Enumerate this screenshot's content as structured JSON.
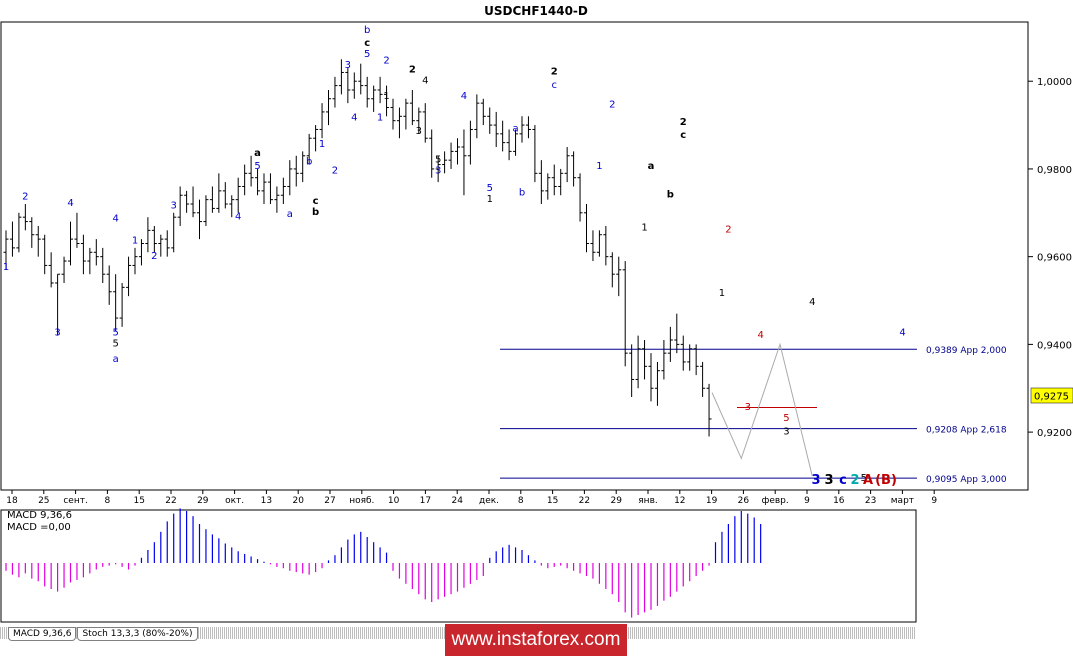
{
  "title": "USDCHF1440-D",
  "current_price": "0,9275",
  "y_tick_labels": [
    "1,0000",
    "0,9800",
    "0,9600",
    "0,9400",
    "0,9200"
  ],
  "x_tick_labels": [
    "18",
    "25",
    "сент.",
    "8",
    "15",
    "22",
    "29",
    "окт.",
    "13",
    "20",
    "27",
    "нояб.",
    "10",
    "17",
    "24",
    "дек.",
    "8",
    "15",
    "22",
    "29",
    "янв.",
    "12",
    "19",
    "26",
    "февр.",
    "9",
    "16",
    "23",
    "март",
    "9"
  ],
  "macd": {
    "label_line1": "MACD 9,36,6",
    "label_line2": "MACD =0,00"
  },
  "tabs": [
    "MACD 9,36,6",
    "Stoch 13,3,3 (80%-20%)"
  ],
  "watermark": "www.instaforex.com",
  "colors": {
    "blue": "#0000cc",
    "black": "#000000",
    "red": "#c00000",
    "macd_pos": "#0000ee",
    "macd_neg": "#e000e0",
    "current_bg": "#ffff00",
    "target_line": "#00008b"
  },
  "chart_data": {
    "type": "candlestick",
    "symbol": "USDCHF",
    "timeframe": "D1",
    "title": "USDCHF1440-D",
    "ylim": [
      0.9068,
      1.0135
    ],
    "y_ticks": [
      1.0,
      0.98,
      0.96,
      0.94,
      0.92
    ],
    "current": 0.9275,
    "bars": [
      [
        0.961,
        0.966,
        0.957,
        0.964
      ],
      [
        0.964,
        0.968,
        0.96,
        0.962
      ],
      [
        0.962,
        0.97,
        0.961,
        0.969
      ],
      [
        0.969,
        0.972,
        0.966,
        0.968
      ],
      [
        0.968,
        0.969,
        0.962,
        0.965
      ],
      [
        0.965,
        0.967,
        0.96,
        0.964
      ],
      [
        0.964,
        0.965,
        0.956,
        0.958
      ],
      [
        0.958,
        0.961,
        0.953,
        0.954
      ],
      [
        0.954,
        0.956,
        0.942,
        0.956
      ],
      [
        0.956,
        0.96,
        0.954,
        0.959
      ],
      [
        0.959,
        0.968,
        0.958,
        0.964
      ],
      [
        0.964,
        0.97,
        0.962,
        0.963
      ],
      [
        0.963,
        0.965,
        0.956,
        0.959
      ],
      [
        0.959,
        0.962,
        0.956,
        0.961
      ],
      [
        0.961,
        0.964,
        0.958,
        0.96
      ],
      [
        0.96,
        0.962,
        0.954,
        0.956
      ],
      [
        0.956,
        0.958,
        0.949,
        0.952
      ],
      [
        0.952,
        0.956,
        0.943,
        0.946
      ],
      [
        0.946,
        0.954,
        0.944,
        0.953
      ],
      [
        0.953,
        0.96,
        0.951,
        0.958
      ],
      [
        0.958,
        0.962,
        0.956,
        0.96
      ],
      [
        0.96,
        0.964,
        0.958,
        0.963
      ],
      [
        0.963,
        0.969,
        0.961,
        0.966
      ],
      [
        0.966,
        0.967,
        0.961,
        0.963
      ],
      [
        0.963,
        0.965,
        0.96,
        0.964
      ],
      [
        0.964,
        0.966,
        0.96,
        0.962
      ],
      [
        0.962,
        0.97,
        0.961,
        0.969
      ],
      [
        0.969,
        0.976,
        0.967,
        0.974
      ],
      [
        0.974,
        0.975,
        0.97,
        0.972
      ],
      [
        0.972,
        0.976,
        0.969,
        0.97
      ],
      [
        0.97,
        0.973,
        0.964,
        0.968
      ],
      [
        0.968,
        0.974,
        0.967,
        0.973
      ],
      [
        0.973,
        0.976,
        0.97,
        0.971
      ],
      [
        0.971,
        0.979,
        0.97,
        0.975
      ],
      [
        0.975,
        0.977,
        0.971,
        0.972
      ],
      [
        0.972,
        0.974,
        0.969,
        0.973
      ],
      [
        0.973,
        0.978,
        0.97,
        0.976
      ],
      [
        0.976,
        0.981,
        0.974,
        0.979
      ],
      [
        0.979,
        0.983,
        0.976,
        0.978
      ],
      [
        0.978,
        0.98,
        0.974,
        0.975
      ],
      [
        0.975,
        0.979,
        0.972,
        0.977
      ],
      [
        0.977,
        0.979,
        0.972,
        0.973
      ],
      [
        0.973,
        0.976,
        0.97,
        0.974
      ],
      [
        0.974,
        0.978,
        0.972,
        0.976
      ],
      [
        0.976,
        0.982,
        0.974,
        0.98
      ],
      [
        0.98,
        0.983,
        0.976,
        0.979
      ],
      [
        0.979,
        0.984,
        0.977,
        0.983
      ],
      [
        0.983,
        0.988,
        0.981,
        0.987
      ],
      [
        0.987,
        0.99,
        0.984,
        0.989
      ],
      [
        0.989,
        0.995,
        0.987,
        0.993
      ],
      [
        0.993,
        0.998,
        0.99,
        0.996
      ],
      [
        0.996,
        1.001,
        0.994,
        0.999
      ],
      [
        0.999,
        1.005,
        0.997,
        1.002
      ],
      [
        1.002,
        1.003,
        0.995,
        0.998
      ],
      [
        0.998,
        1.002,
        0.996,
        1.0
      ],
      [
        1.0,
        1.004,
        0.997,
        0.999
      ],
      [
        0.999,
        1.001,
        0.994,
        0.996
      ],
      [
        0.996,
        0.999,
        0.993,
        0.998
      ],
      [
        0.998,
        1.001,
        0.995,
        0.997
      ],
      [
        0.997,
        0.999,
        0.992,
        0.994
      ],
      [
        0.994,
        0.996,
        0.989,
        0.991
      ],
      [
        0.991,
        0.994,
        0.987,
        0.992
      ],
      [
        0.992,
        0.996,
        0.989,
        0.995
      ],
      [
        0.995,
        0.998,
        0.99,
        0.991
      ],
      [
        0.991,
        0.994,
        0.988,
        0.993
      ],
      [
        0.993,
        0.995,
        0.986,
        0.987
      ],
      [
        0.987,
        0.989,
        0.978,
        0.98
      ],
      [
        0.98,
        0.983,
        0.977,
        0.981
      ],
      [
        0.981,
        0.984,
        0.979,
        0.982
      ],
      [
        0.982,
        0.986,
        0.98,
        0.984
      ],
      [
        0.984,
        0.987,
        0.981,
        0.985
      ],
      [
        0.985,
        0.989,
        0.974,
        0.983
      ],
      [
        0.983,
        0.991,
        0.981,
        0.989
      ],
      [
        0.989,
        0.997,
        0.987,
        0.995
      ],
      [
        0.995,
        0.996,
        0.99,
        0.992
      ],
      [
        0.992,
        0.994,
        0.988,
        0.99
      ],
      [
        0.99,
        0.993,
        0.985,
        0.988
      ],
      [
        0.988,
        0.991,
        0.984,
        0.986
      ],
      [
        0.986,
        0.989,
        0.982,
        0.984
      ],
      [
        0.984,
        0.989,
        0.983,
        0.988
      ],
      [
        0.988,
        0.992,
        0.986,
        0.99
      ],
      [
        0.99,
        0.992,
        0.987,
        0.989
      ],
      [
        0.989,
        0.99,
        0.977,
        0.979
      ],
      [
        0.979,
        0.982,
        0.972,
        0.975
      ],
      [
        0.975,
        0.979,
        0.973,
        0.978
      ],
      [
        0.978,
        0.981,
        0.974,
        0.976
      ],
      [
        0.976,
        0.98,
        0.974,
        0.979
      ],
      [
        0.979,
        0.985,
        0.977,
        0.983
      ],
      [
        0.983,
        0.984,
        0.976,
        0.978
      ],
      [
        0.978,
        0.979,
        0.968,
        0.97
      ],
      [
        0.97,
        0.972,
        0.961,
        0.963
      ],
      [
        0.963,
        0.966,
        0.959,
        0.961
      ],
      [
        0.961,
        0.966,
        0.96,
        0.965
      ],
      [
        0.965,
        0.967,
        0.958,
        0.96
      ],
      [
        0.96,
        0.961,
        0.953,
        0.956
      ],
      [
        0.956,
        0.96,
        0.951,
        0.957
      ],
      [
        0.957,
        0.959,
        0.935,
        0.938
      ],
      [
        0.938,
        0.94,
        0.928,
        0.932
      ],
      [
        0.932,
        0.942,
        0.93,
        0.939
      ],
      [
        0.939,
        0.941,
        0.932,
        0.935
      ],
      [
        0.935,
        0.938,
        0.927,
        0.93
      ],
      [
        0.93,
        0.936,
        0.926,
        0.934
      ],
      [
        0.934,
        0.941,
        0.932,
        0.938
      ],
      [
        0.938,
        0.944,
        0.936,
        0.941
      ],
      [
        0.941,
        0.947,
        0.938,
        0.94
      ],
      [
        0.94,
        0.942,
        0.934,
        0.936
      ],
      [
        0.936,
        0.94,
        0.934,
        0.939
      ],
      [
        0.939,
        0.94,
        0.933,
        0.935
      ],
      [
        0.935,
        0.936,
        0.928,
        0.93
      ],
      [
        0.93,
        0.931,
        0.919,
        0.923
      ]
    ],
    "fib_levels": [
      {
        "price": 0.9389,
        "label": "0,9389 Арр 2,000"
      },
      {
        "price": 0.9208,
        "label": "0,9208 Арр 2,618"
      },
      {
        "price": 0.9095,
        "label": "0,9095 Арр 3,000"
      }
    ],
    "red_level": 0.9256,
    "projection": [
      [
        0.929,
        0.914,
        0.94,
        0.91
      ]
    ],
    "macd_values": [
      -6,
      -9,
      -11,
      -8,
      -12,
      -14,
      -18,
      -20,
      -22,
      -19,
      -15,
      -13,
      -11,
      -8,
      -5,
      -3,
      -2,
      -1,
      -3,
      -5,
      -2,
      4,
      10,
      16,
      24,
      32,
      38,
      42,
      40,
      36,
      30,
      26,
      22,
      19,
      15,
      12,
      9,
      7,
      5,
      3,
      1,
      -1,
      -3,
      -4,
      -6,
      -7,
      -8,
      -9,
      -7,
      -4,
      2,
      6,
      12,
      18,
      22,
      24,
      20,
      16,
      12,
      8,
      -6,
      -12,
      -16,
      -20,
      -24,
      -28,
      -30,
      -28,
      -26,
      -24,
      -22,
      -19,
      -16,
      -13,
      -10,
      4,
      9,
      12,
      14,
      12,
      10,
      6,
      2,
      -2,
      -4,
      -3,
      -2,
      -4,
      -6,
      -8,
      -10,
      -12,
      -16,
      -20,
      -24,
      -30,
      -38,
      -42,
      -40,
      -38,
      -36,
      -33,
      -29,
      -26,
      -22,
      -18,
      -14,
      -10,
      -6,
      -2,
      16,
      24,
      30,
      36,
      40,
      38,
      35,
      30
    ]
  },
  "wave_labels": [
    {
      "t": "1",
      "c": "blue",
      "i": 0,
      "p": 0.957,
      "b": 1
    },
    {
      "t": "2",
      "c": "blue",
      "i": 3,
      "p": 0.973,
      "b": 0
    },
    {
      "t": "4",
      "c": "blue",
      "i": 10,
      "p": 0.9715,
      "b": 0
    },
    {
      "t": "3",
      "c": "blue",
      "i": 8,
      "p": 0.942,
      "b": 1
    },
    {
      "t": "1",
      "c": "blue",
      "i": 20,
      "p": 0.963,
      "b": 0
    },
    {
      "t": "2",
      "c": "blue",
      "i": 23,
      "p": 0.9595,
      "b": 1
    },
    {
      "t": "3",
      "c": "blue",
      "i": 26,
      "p": 0.971,
      "b": 0
    },
    {
      "t": "4",
      "c": "blue",
      "i": 17,
      "p": 0.968,
      "b": 0
    },
    {
      "t": "5",
      "c": "blue",
      "i": 17,
      "p": 0.942,
      "b": 1
    },
    {
      "t": "5",
      "c": "black",
      "i": 17,
      "p": 0.9395,
      "b": 1
    },
    {
      "t": "a",
      "c": "blue",
      "i": 17,
      "p": 0.936,
      "b": 1
    },
    {
      "t": "4",
      "c": "blue",
      "i": 36,
      "p": 0.9685,
      "b": 1
    },
    {
      "t": "a",
      "c": "black",
      "i": 39,
      "p": 0.983,
      "b": 0
    },
    {
      "t": "5",
      "c": "blue",
      "i": 39,
      "p": 0.98,
      "b": 0
    },
    {
      "t": "a",
      "c": "blue",
      "i": 44,
      "p": 0.969,
      "b": 1
    },
    {
      "t": "c",
      "c": "black",
      "i": 48,
      "p": 0.972,
      "b": 0
    },
    {
      "t": "b",
      "c": "black",
      "i": 48,
      "p": 0.9695,
      "b": 1
    },
    {
      "t": "b",
      "c": "blue",
      "i": 47,
      "p": 0.981,
      "b": 0
    },
    {
      "t": "1",
      "c": "blue",
      "i": 49,
      "p": 0.985,
      "b": 0
    },
    {
      "t": "2",
      "c": "blue",
      "i": 51,
      "p": 0.979,
      "b": 1
    },
    {
      "t": "3",
      "c": "blue",
      "i": 53,
      "p": 1.003,
      "b": 0
    },
    {
      "t": "4",
      "c": "blue",
      "i": 54,
      "p": 0.991,
      "b": 1
    },
    {
      "t": "b",
      "c": "blue",
      "i": 56,
      "p": 1.011,
      "b": 0
    },
    {
      "t": "c",
      "c": "black",
      "i": 56,
      "p": 1.008,
      "b": 0
    },
    {
      "t": "5",
      "c": "blue",
      "i": 56,
      "p": 1.0055,
      "b": 0
    },
    {
      "t": "1",
      "c": "blue",
      "i": 58,
      "p": 0.991,
      "b": 1
    },
    {
      "t": "2",
      "c": "blue",
      "i": 59,
      "p": 1.004,
      "b": 0
    },
    {
      "t": "1",
      "c": "black",
      "i": 59,
      "p": 0.996,
      "b": 1
    },
    {
      "t": "2",
      "c": "black",
      "i": 63,
      "p": 1.002,
      "b": 0
    },
    {
      "t": "3",
      "c": "black",
      "i": 64,
      "p": 0.988,
      "b": 1
    },
    {
      "t": "4",
      "c": "black",
      "i": 65,
      "p": 0.9995,
      "b": 0
    },
    {
      "t": "5",
      "c": "black",
      "i": 67,
      "p": 0.9815,
      "b": 1
    },
    {
      "t": "3",
      "c": "blue",
      "i": 67,
      "p": 0.979,
      "b": 1
    },
    {
      "t": "4",
      "c": "blue",
      "i": 71,
      "p": 0.996,
      "b": 0
    },
    {
      "t": "5",
      "c": "blue",
      "i": 75,
      "p": 0.975,
      "b": 1
    },
    {
      "t": "1",
      "c": "black",
      "i": 75,
      "p": 0.9725,
      "b": 1
    },
    {
      "t": "a",
      "c": "blue",
      "i": 79,
      "p": 0.9885,
      "b": 0
    },
    {
      "t": "b",
      "c": "blue",
      "i": 80,
      "p": 0.974,
      "b": 1
    },
    {
      "t": "2",
      "c": "black",
      "i": 85,
      "p": 1.0015,
      "b": 0
    },
    {
      "t": "c",
      "c": "blue",
      "i": 85,
      "p": 0.9985,
      "b": 0
    },
    {
      "t": "2",
      "c": "blue",
      "i": 94,
      "p": 0.994,
      "b": 0
    },
    {
      "t": "1",
      "c": "blue",
      "i": 92,
      "p": 0.98,
      "b": 1
    },
    {
      "t": "a",
      "c": "black",
      "i": 100,
      "p": 0.98,
      "b": 0
    },
    {
      "t": "1",
      "c": "black",
      "i": 99,
      "p": 0.966,
      "b": 1
    },
    {
      "t": "b",
      "c": "black",
      "i": 103,
      "p": 0.9735,
      "b": 1
    },
    {
      "t": "2",
      "c": "black",
      "i": 105,
      "p": 0.99,
      "b": 0
    },
    {
      "t": "c",
      "c": "black",
      "i": 105,
      "p": 0.987,
      "b": 0
    },
    {
      "t": "2",
      "c": "red",
      "i": 112,
      "p": 0.9655,
      "b": 0
    },
    {
      "t": "1",
      "c": "black",
      "i": 111,
      "p": 0.951,
      "b": 1
    },
    {
      "t": "4",
      "c": "red",
      "i": 117,
      "p": 0.9415,
      "b": 0
    },
    {
      "t": "3",
      "c": "red",
      "i": 115,
      "p": 0.925,
      "b": 1
    },
    {
      "t": "5",
      "c": "red",
      "i": 121,
      "p": 0.9225,
      "b": 1
    },
    {
      "t": "3",
      "c": "black",
      "i": 121,
      "p": 0.9195,
      "b": 1
    },
    {
      "t": "4",
      "c": "black",
      "i": 125,
      "p": 0.949,
      "b": 0
    }
  ],
  "projection_labels": [
    {
      "t": "5",
      "c": "black",
      "i": 133,
      "p": 0.9088,
      "b": 0
    },
    {
      "t": "4",
      "c": "blue",
      "i": 139,
      "p": 0.942,
      "b": 0
    }
  ],
  "bottom_labels": [
    {
      "t": "3",
      "c": "blue",
      "x": 816
    },
    {
      "t": "3",
      "c": "black",
      "x": 829
    },
    {
      "t": "c",
      "c": "blue",
      "x": 843
    },
    {
      "t": "2",
      "c": "teal",
      "x": 855
    },
    {
      "t": "A",
      "c": "red",
      "x": 868
    },
    {
      "t": "(B)",
      "c": "red",
      "x": 886
    }
  ]
}
